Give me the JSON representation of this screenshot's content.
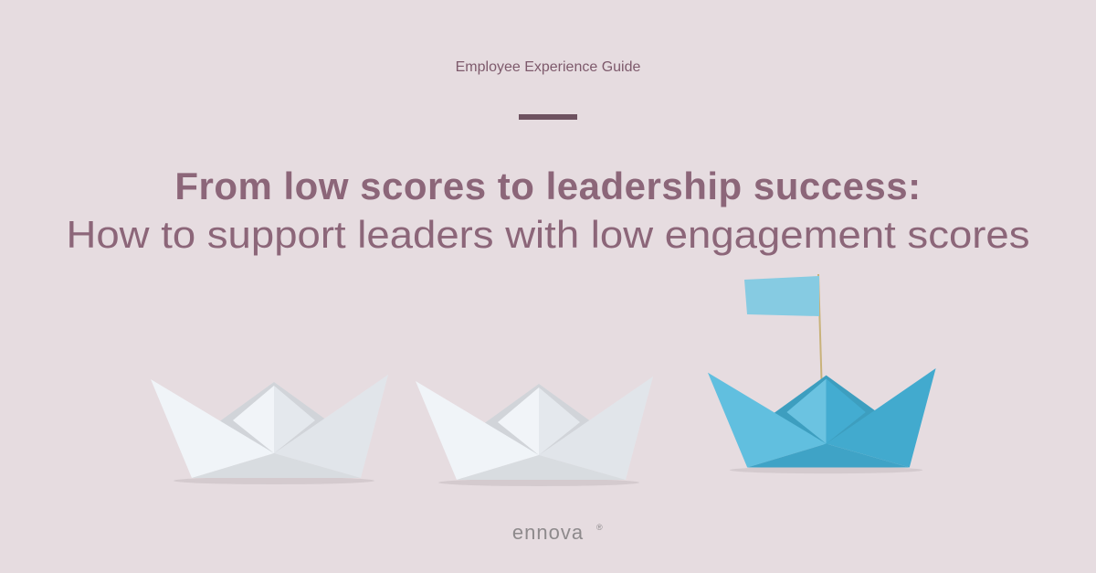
{
  "header": {
    "eyebrow": "Employee Experience Guide",
    "title_line_1": "From low scores to leadership success:",
    "title_line_2": "How to support leaders with low engagement scores"
  },
  "footer": {
    "logo": "ennova",
    "logo_mark": "®"
  }
}
